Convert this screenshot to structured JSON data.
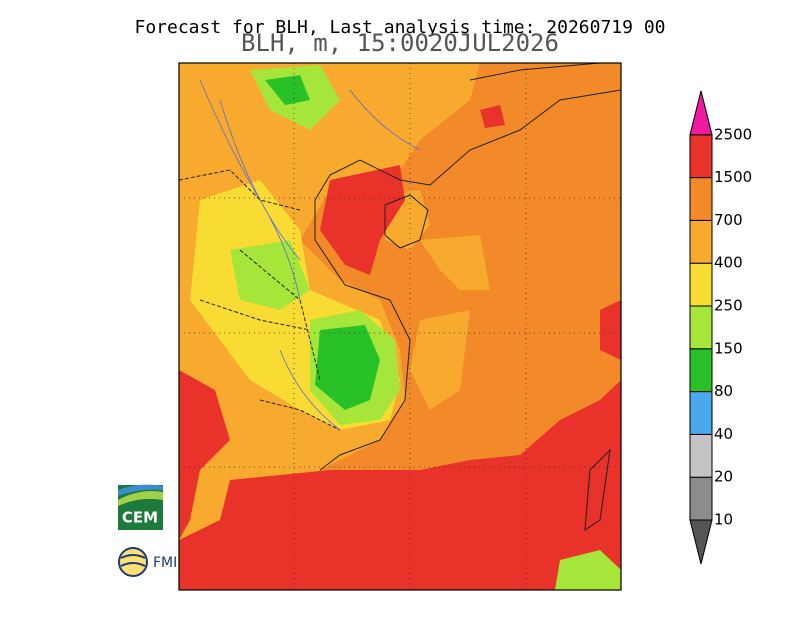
{
  "header": {
    "title": "Forecast for BLH, Last analysis time: 20260719 00",
    "subtitle": "BLH, m, 15:0020JUL2026"
  },
  "legend": {
    "levels": [
      10,
      20,
      40,
      80,
      150,
      250,
      400,
      700,
      1500,
      2500
    ],
    "colors": [
      "#555555",
      "#8c8c8c",
      "#c4c4c4",
      "#4aa8ee",
      "#28c228",
      "#a6e63a",
      "#f8dc34",
      "#f8aa2e",
      "#f28a2a",
      "#e8322a",
      "#ee1aa0"
    ]
  },
  "logos": {
    "cem": "CEM",
    "fmi": "FMI"
  }
}
